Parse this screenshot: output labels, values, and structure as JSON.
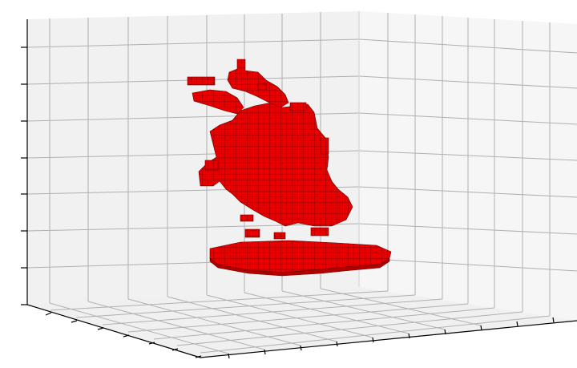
{
  "figure": {
    "type": "3d-voxel-plot",
    "title": "",
    "voxel_color": "#e60000",
    "voxel_edge_color": "#6a0000",
    "pane_color": "#f1f1f1",
    "grid_color": "#b0b0b0",
    "axis_color": "#000000",
    "tick_labels_visible": false
  }
}
